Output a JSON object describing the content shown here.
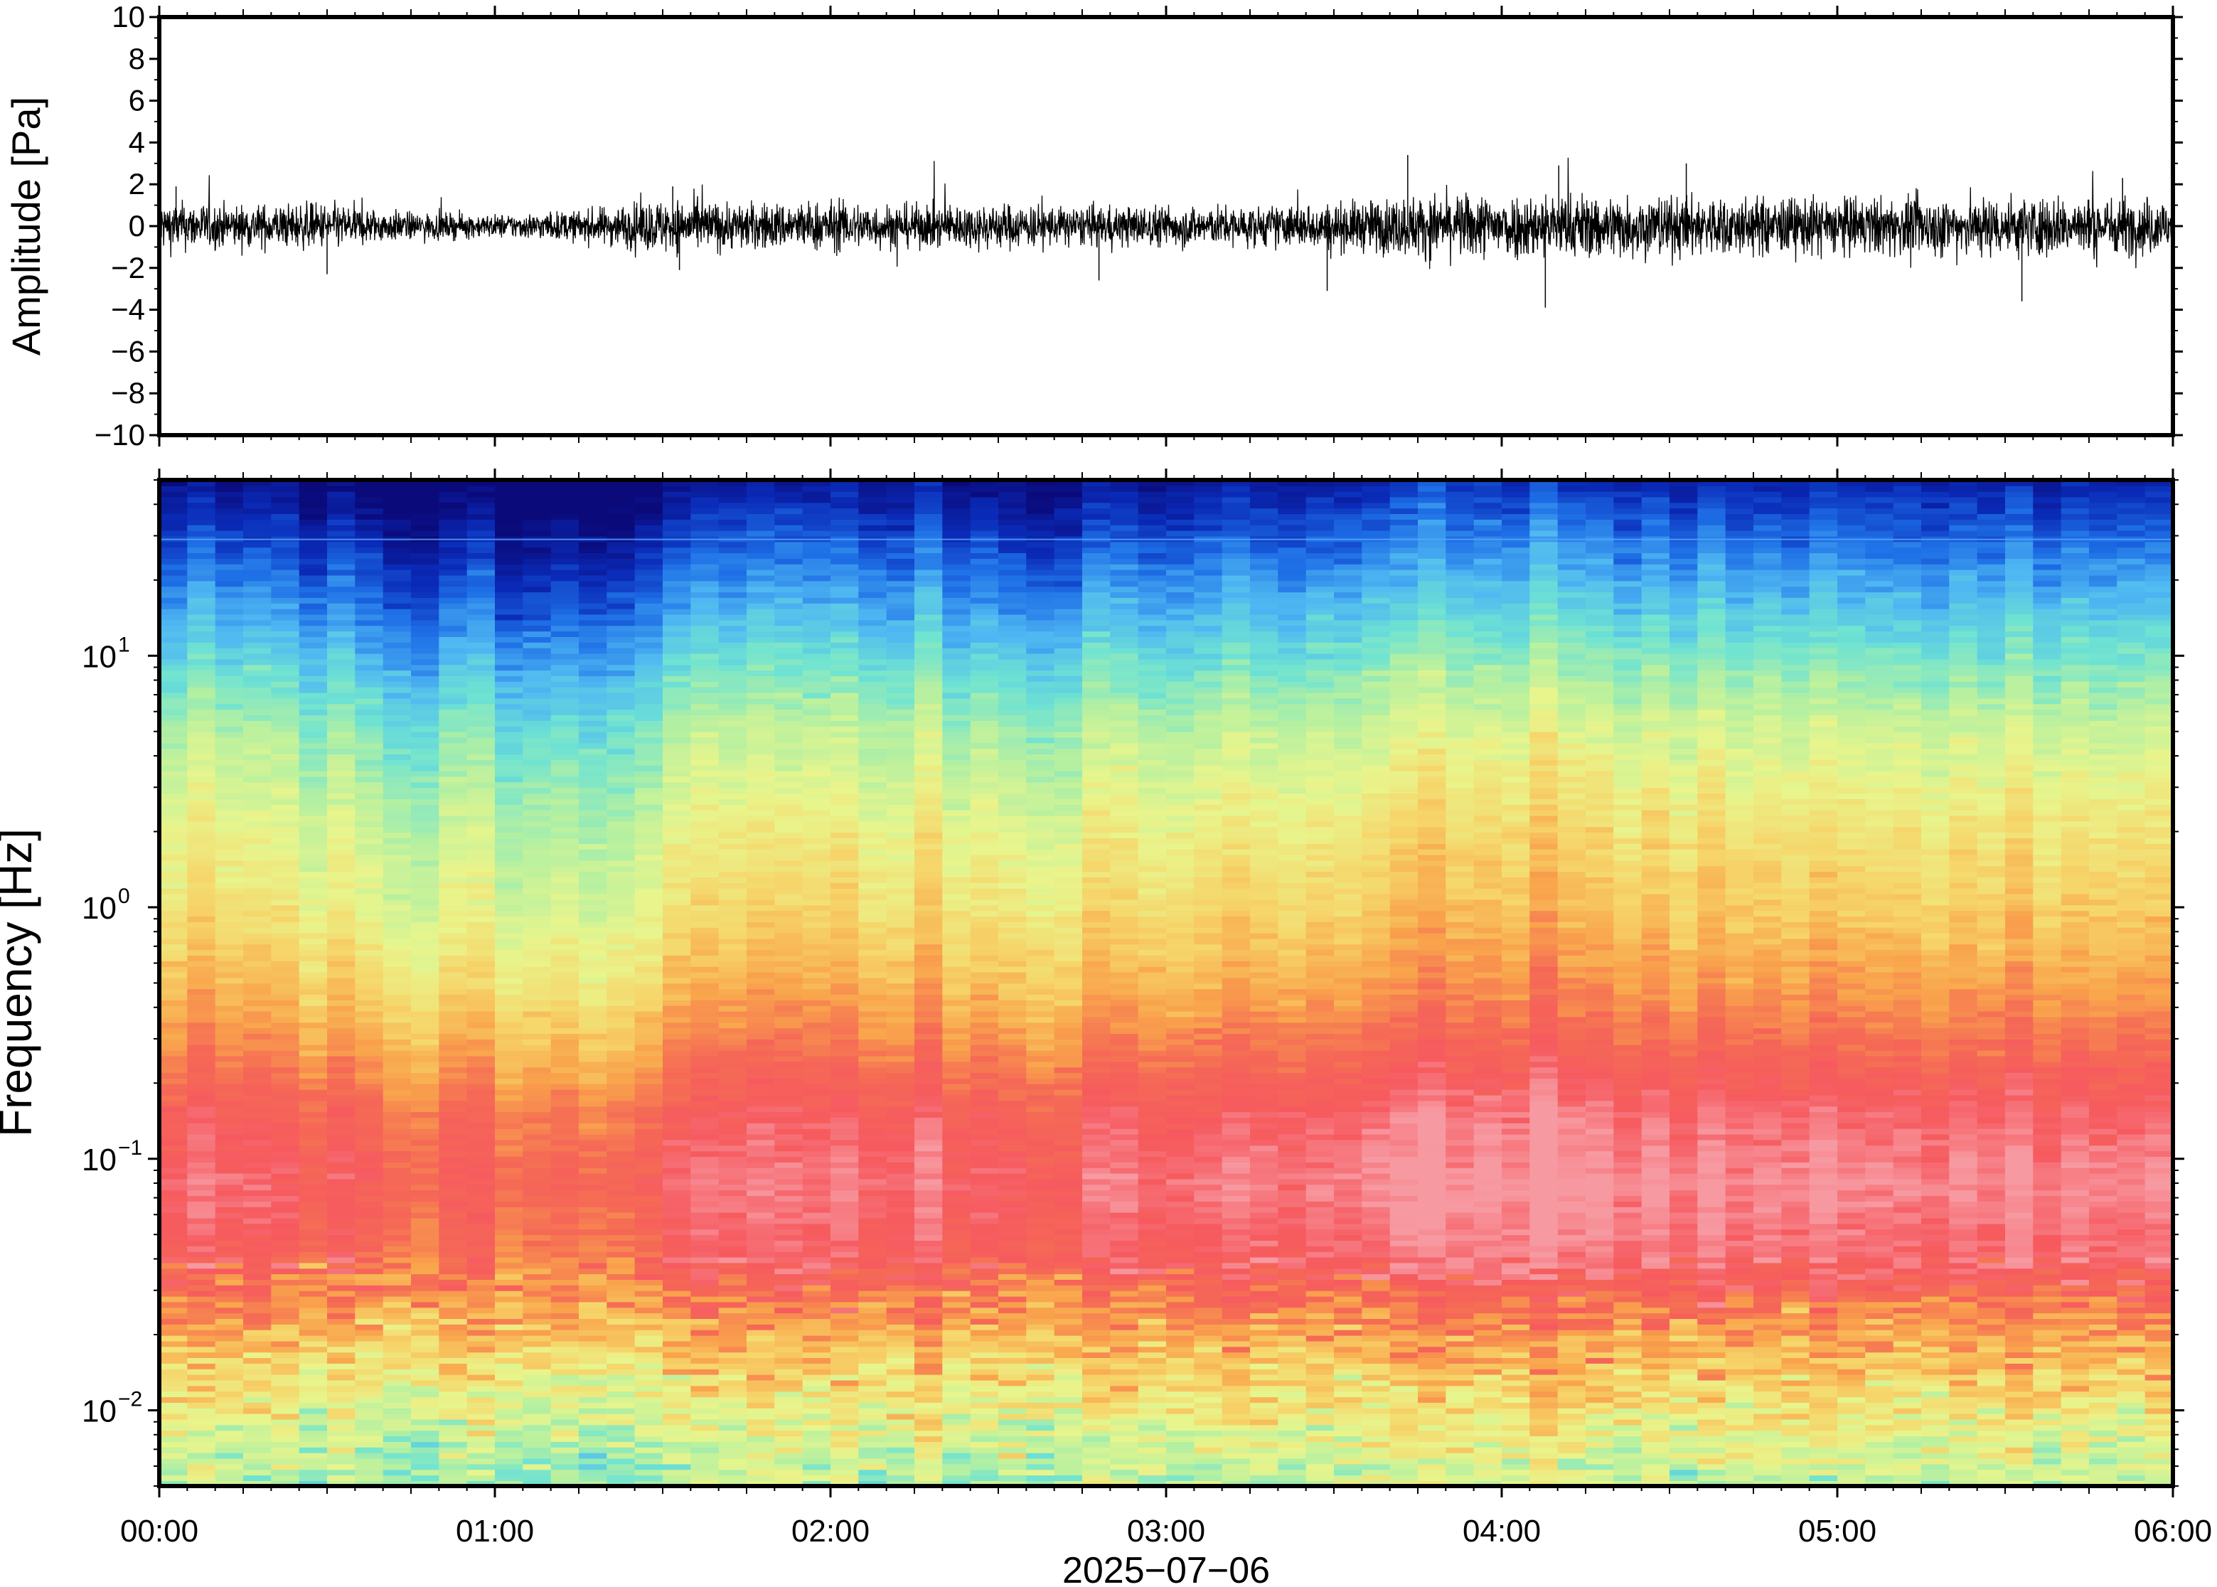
{
  "chart_data": [
    {
      "type": "line",
      "panel": "waveform",
      "ylabel": "Amplitude [Pa]",
      "ylim": [
        -10,
        10
      ],
      "yticks": [
        10,
        8,
        6,
        4,
        2,
        0,
        -2,
        -4,
        -6,
        -8,
        -10
      ],
      "ytick_labels": [
        "10",
        "8",
        "6",
        "4",
        "2",
        "0",
        "−2",
        "−4",
        "−6",
        "−8",
        "−10"
      ],
      "xlim_hours": [
        0,
        6
      ],
      "color": "#000000",
      "series": [
        {
          "x_hours": [
            0.0,
            0.25,
            0.5,
            0.75,
            1.0,
            1.25,
            1.5,
            1.75,
            2.0,
            2.25,
            2.5,
            2.75,
            3.0,
            3.25,
            3.5,
            3.75,
            4.0,
            4.25,
            4.5,
            4.75,
            5.0,
            5.25,
            5.5,
            5.75,
            6.0
          ],
          "envelope_pa": [
            1.3,
            1.1,
            1.2,
            0.7,
            0.6,
            0.8,
            1.4,
            1.2,
            1.3,
            1.1,
            1.2,
            1.0,
            1.1,
            1.0,
            1.2,
            1.6,
            1.7,
            1.7,
            1.6,
            1.5,
            1.5,
            1.5,
            1.6,
            1.5,
            1.5
          ],
          "peaks": [
            {
              "x": 0.05,
              "y": 1.9
            },
            {
              "x": 0.5,
              "y": -2.3
            },
            {
              "x": 1.53,
              "y": 1.9
            },
            {
              "x": 1.55,
              "y": -2.1
            },
            {
              "x": 2.8,
              "y": -2.6
            },
            {
              "x": 3.48,
              "y": -3.1
            },
            {
              "x": 3.72,
              "y": 3.4
            },
            {
              "x": 4.13,
              "y": -3.9
            },
            {
              "x": 4.17,
              "y": 2.9
            },
            {
              "x": 4.55,
              "y": 3.0
            },
            {
              "x": 5.55,
              "y": -3.6
            },
            {
              "x": 5.85,
              "y": 2.3
            }
          ]
        }
      ]
    },
    {
      "type": "heatmap",
      "panel": "spectrogram",
      "ylabel": "Frequency [Hz]",
      "yscale": "log",
      "ylim": [
        0.005,
        50
      ],
      "yticks": [
        0.01,
        0.1,
        1,
        10
      ],
      "ytick_labels": [
        {
          "base": "10",
          "exp": "−2"
        },
        {
          "base": "10",
          "exp": "−1"
        },
        {
          "base": "10",
          "exp": "0"
        },
        {
          "base": "10",
          "exp": "1"
        }
      ],
      "xlim_hours": [
        0,
        6
      ],
      "colormap": [
        "#0a0a7a",
        "#0a2bb8",
        "#1e6fe6",
        "#4fb8f2",
        "#6fe3d2",
        "#b6f0a0",
        "#e8f58c",
        "#f6d56a",
        "#f9a44c",
        "#f56a55",
        "#f65a5f",
        "#f79aa2"
      ],
      "frequency_profile": [
        {
          "f": 50,
          "level": 0.02
        },
        {
          "f": 30,
          "level": 0.12
        },
        {
          "f": 20,
          "level": 0.2
        },
        {
          "f": 10,
          "level": 0.33
        },
        {
          "f": 5,
          "level": 0.45
        },
        {
          "f": 2,
          "level": 0.55
        },
        {
          "f": 1,
          "level": 0.6
        },
        {
          "f": 0.5,
          "level": 0.68
        },
        {
          "f": 0.3,
          "level": 0.76
        },
        {
          "f": 0.15,
          "level": 0.88
        },
        {
          "f": 0.08,
          "level": 0.93
        },
        {
          "f": 0.04,
          "level": 0.88
        },
        {
          "f": 0.025,
          "level": 0.76
        },
        {
          "f": 0.015,
          "level": 0.64
        },
        {
          "f": 0.008,
          "level": 0.52
        },
        {
          "f": 0.005,
          "level": 0.46
        }
      ],
      "time_activity": [
        {
          "t": 0.0,
          "a": 0.0
        },
        {
          "t": 0.5,
          "a": -0.02
        },
        {
          "t": 0.8,
          "a": -0.07
        },
        {
          "t": 1.1,
          "a": -0.09
        },
        {
          "t": 1.4,
          "a": -0.07
        },
        {
          "t": 1.5,
          "a": 0.02
        },
        {
          "t": 2.0,
          "a": 0.04
        },
        {
          "t": 2.5,
          "a": 0.0
        },
        {
          "t": 3.0,
          "a": 0.01
        },
        {
          "t": 3.3,
          "a": 0.03
        },
        {
          "t": 3.7,
          "a": 0.07
        },
        {
          "t": 4.2,
          "a": 0.08
        },
        {
          "t": 4.7,
          "a": 0.05
        },
        {
          "t": 5.2,
          "a": 0.05
        },
        {
          "t": 6.0,
          "a": 0.04
        }
      ]
    }
  ],
  "xaxis": {
    "tick_labels": [
      "00:00",
      "01:00",
      "02:00",
      "03:00",
      "04:00",
      "05:00",
      "06:00"
    ],
    "xlabel": "2025−07−06"
  }
}
